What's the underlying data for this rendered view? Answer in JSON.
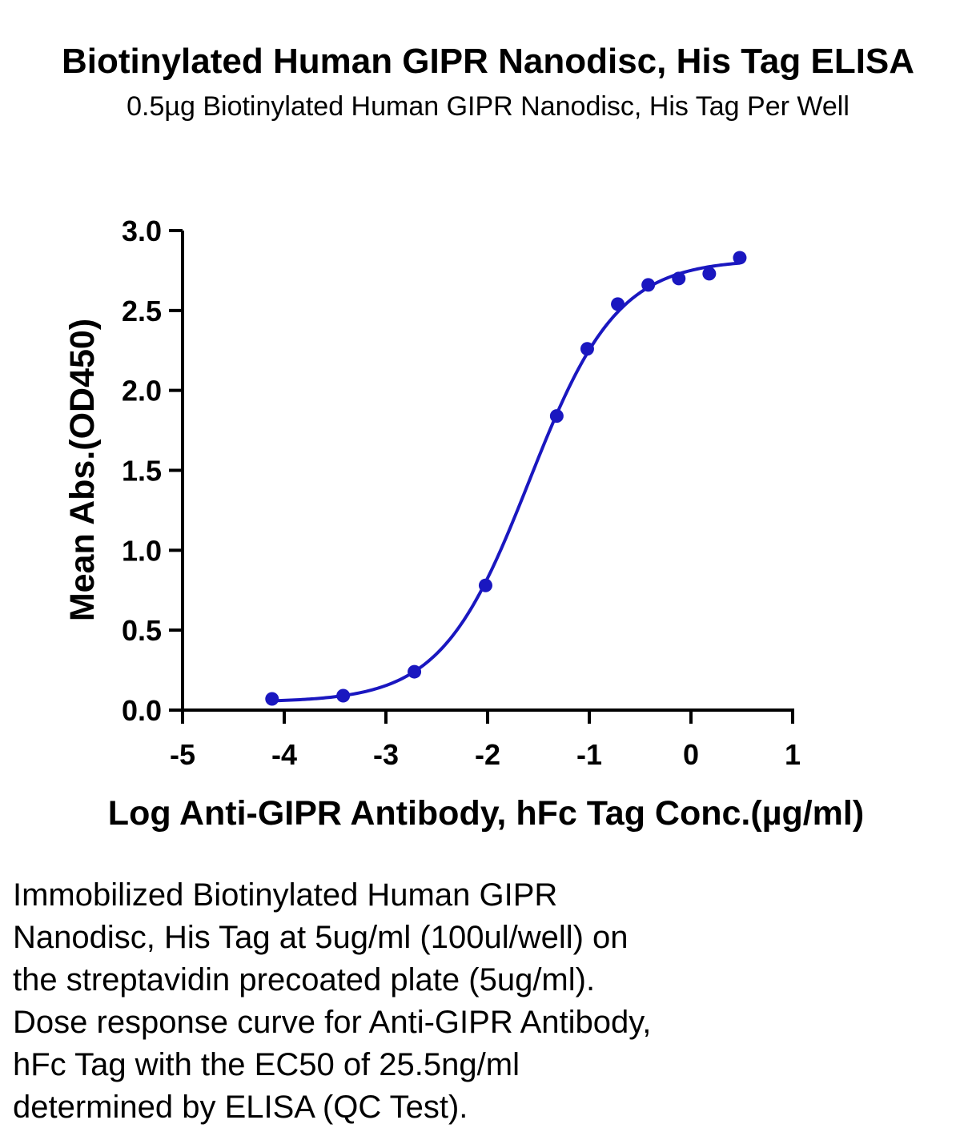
{
  "title": "Biotinylated Human GIPR Nanodisc, His Tag ELISA",
  "subtitle": "0.5µg Biotinylated Human GIPR Nanodisc, His Tag Per Well",
  "caption_lines": [
    "Immobilized Biotinylated Human GIPR",
    "Nanodisc, His Tag at 5ug/ml (100ul/well) on",
    "the streptavidin precoated plate (5ug/ml).",
    "Dose response curve for Anti-GIPR Antibody,",
    "hFc Tag with the EC50 of 25.5ng/ml",
    "determined by ELISA (QC Test)."
  ],
  "colors": {
    "series": "#1a17c0",
    "axis": "#000000"
  },
  "chart_data": {
    "type": "scatter",
    "xlabel": "Log Anti-GIPR Antibody, hFc Tag Conc.(µg/ml)",
    "ylabel": "Mean Abs.(OD450)",
    "xlim": [
      -5,
      1
    ],
    "ylim": [
      0,
      3
    ],
    "xticks": [
      "-5",
      "-4",
      "-3",
      "-2",
      "-1",
      "0",
      "1"
    ],
    "yticks": [
      "0.0",
      "0.5",
      "1.0",
      "1.5",
      "2.0",
      "2.5",
      "3.0"
    ],
    "grid": false,
    "series": [
      {
        "x": [
          -4.12,
          -3.42,
          -2.72,
          -2.02,
          -1.32,
          -1.02,
          -0.72,
          -0.42,
          -0.12,
          0.18,
          0.48
        ],
        "y": [
          0.07,
          0.09,
          0.24,
          0.78,
          1.84,
          2.26,
          2.54,
          2.66,
          2.7,
          2.73,
          2.83
        ]
      }
    ],
    "fit_curve": {
      "model": "4PL",
      "bottom": 0.05,
      "top": 2.82,
      "logEC50": -1.59,
      "hill": 1.0
    }
  }
}
